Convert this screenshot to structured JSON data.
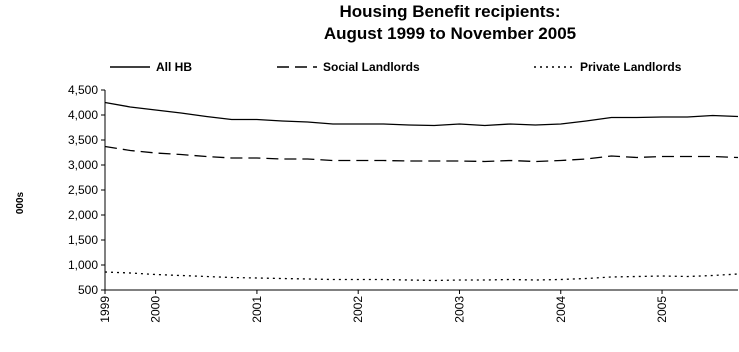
{
  "chart_data": {
    "type": "line",
    "title": [
      "Housing Benefit recipients:",
      "August 1999 to November 2005"
    ],
    "xlabel": "",
    "ylabel": "000s",
    "ylim": [
      500,
      4500
    ],
    "yticks": [
      500,
      1000,
      1500,
      2000,
      2500,
      3000,
      3500,
      4000,
      4500
    ],
    "ytick_labels": [
      "500",
      "1,000",
      "1,500",
      "2,000",
      "2,500",
      "3,000",
      "3,500",
      "4,000",
      "4,500"
    ],
    "xlim": [
      "1999-08",
      "2005-11"
    ],
    "xticks": [
      {
        "label": "1999",
        "date": "1999-08"
      },
      {
        "label": "2000",
        "date": "2000-02"
      },
      {
        "label": "2001",
        "date": "2001-02"
      },
      {
        "label": "2002",
        "date": "2002-02"
      },
      {
        "label": "2003",
        "date": "2003-02"
      },
      {
        "label": "2004",
        "date": "2004-02"
      },
      {
        "label": "2005",
        "date": "2005-02"
      }
    ],
    "grid": false,
    "legend_position": "top",
    "x": [
      "1999-08",
      "1999-11",
      "2000-02",
      "2000-05",
      "2000-08",
      "2000-11",
      "2001-02",
      "2001-05",
      "2001-08",
      "2001-11",
      "2002-02",
      "2002-05",
      "2002-08",
      "2002-11",
      "2003-02",
      "2003-05",
      "2003-08",
      "2003-11",
      "2004-02",
      "2004-05",
      "2004-08",
      "2004-11",
      "2005-02",
      "2005-05",
      "2005-08",
      "2005-11"
    ],
    "series": [
      {
        "name": "All HB",
        "style": "solid",
        "color": "#000000",
        "values": [
          4250,
          4160,
          4100,
          4040,
          3970,
          3910,
          3910,
          3880,
          3860,
          3820,
          3820,
          3820,
          3800,
          3790,
          3820,
          3790,
          3820,
          3800,
          3820,
          3880,
          3950,
          3950,
          3960,
          3960,
          3990,
          3970
        ]
      },
      {
        "name": "Social Landlords",
        "style": "dashed",
        "color": "#000000",
        "values": [
          3370,
          3290,
          3240,
          3210,
          3170,
          3140,
          3140,
          3120,
          3120,
          3090,
          3090,
          3090,
          3080,
          3080,
          3080,
          3070,
          3090,
          3070,
          3090,
          3120,
          3180,
          3150,
          3170,
          3170,
          3170,
          3150
        ]
      },
      {
        "name": "Private Landlords",
        "style": "dotted",
        "color": "#000000",
        "values": [
          860,
          840,
          810,
          790,
          770,
          750,
          740,
          730,
          720,
          710,
          710,
          710,
          700,
          690,
          700,
          700,
          710,
          700,
          710,
          730,
          760,
          770,
          780,
          770,
          790,
          820
        ]
      }
    ]
  }
}
